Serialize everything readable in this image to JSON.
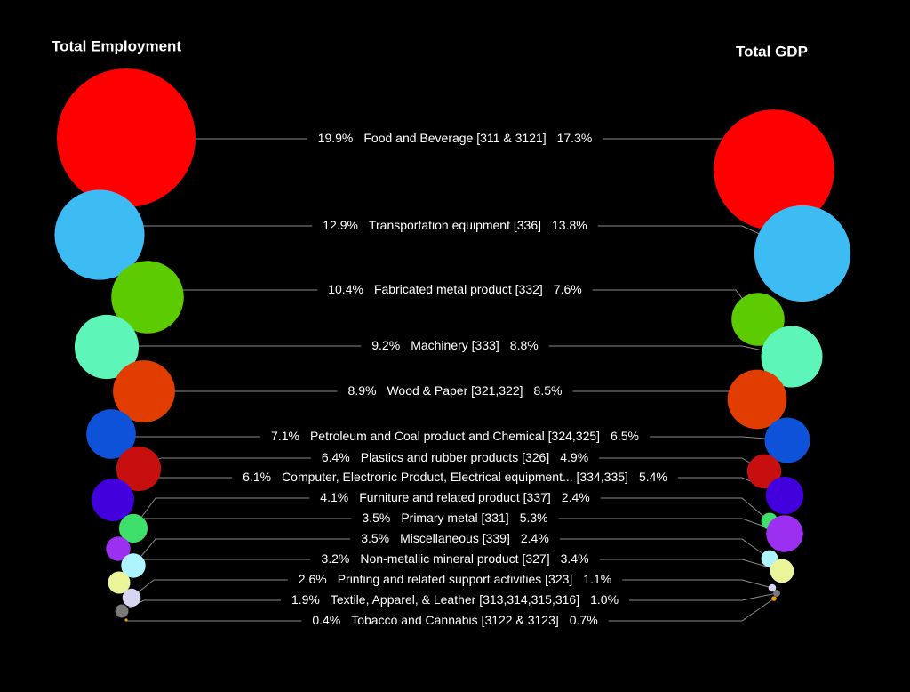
{
  "chart_data": {
    "type": "bubble",
    "categories": [
      "Food and Beverage [311 & 3121]",
      "Transportation equipment  [336]",
      "Fabricated metal product [332]",
      "Machinery [333]",
      "Wood & Paper [321,322]",
      "Petroleum and Coal product and Chemical [324,325]",
      "Plastics and rubber products [326]",
      "Computer, Electronic Product, Electrical equipment... [334,335]",
      "Furniture and related product [337]",
      "Primary metal [331]",
      "Miscellaneous [339]",
      "Non-metallic mineral product [327]",
      "Printing and related support activities  [323]",
      "Textile, Apparel, & Leather [313,314,315,316]",
      "Tobacco and Cannabis [3122 & 3123]"
    ],
    "colors": [
      "#ff0000",
      "#3dbcf4",
      "#5ccc00",
      "#5ef5b8",
      "#e23d00",
      "#0d52d9",
      "#c80f0f",
      "#4200dd",
      "#3fe06a",
      "#9b30f0",
      "#aef4ff",
      "#eaf59a",
      "#d6d6f0",
      "#7a7a7a",
      "#f0a000"
    ],
    "series": [
      {
        "name": "Total Employment",
        "values": [
          19.9,
          12.9,
          10.4,
          9.2,
          8.9,
          7.1,
          6.4,
          6.1,
          4.1,
          3.5,
          3.5,
          3.2,
          2.6,
          1.9,
          0.4
        ],
        "value_labels": [
          "19.9%",
          "12.9%",
          "10.4%",
          "9.2%",
          "8.9%",
          "7.1%",
          "6.4%",
          "6.1%",
          "4.1%",
          "3.5%",
          "3.5%",
          "3.2%",
          "2.6%",
          "1.9%",
          "0.4%"
        ]
      },
      {
        "name": "Total GDP",
        "values": [
          17.3,
          13.8,
          7.6,
          8.8,
          8.5,
          6.5,
          4.9,
          5.4,
          2.4,
          5.3,
          2.4,
          3.4,
          1.1,
          1.0,
          0.7
        ],
        "value_labels": [
          "17.3%",
          "13.8%",
          "7.6%",
          "8.8%",
          "8.5%",
          "6.5%",
          "4.9%",
          "5.4%",
          "2.4%",
          "5.3%",
          "2.4%",
          "3.4%",
          "1.1%",
          "1.0%",
          "0.7%"
        ]
      }
    ]
  }
}
